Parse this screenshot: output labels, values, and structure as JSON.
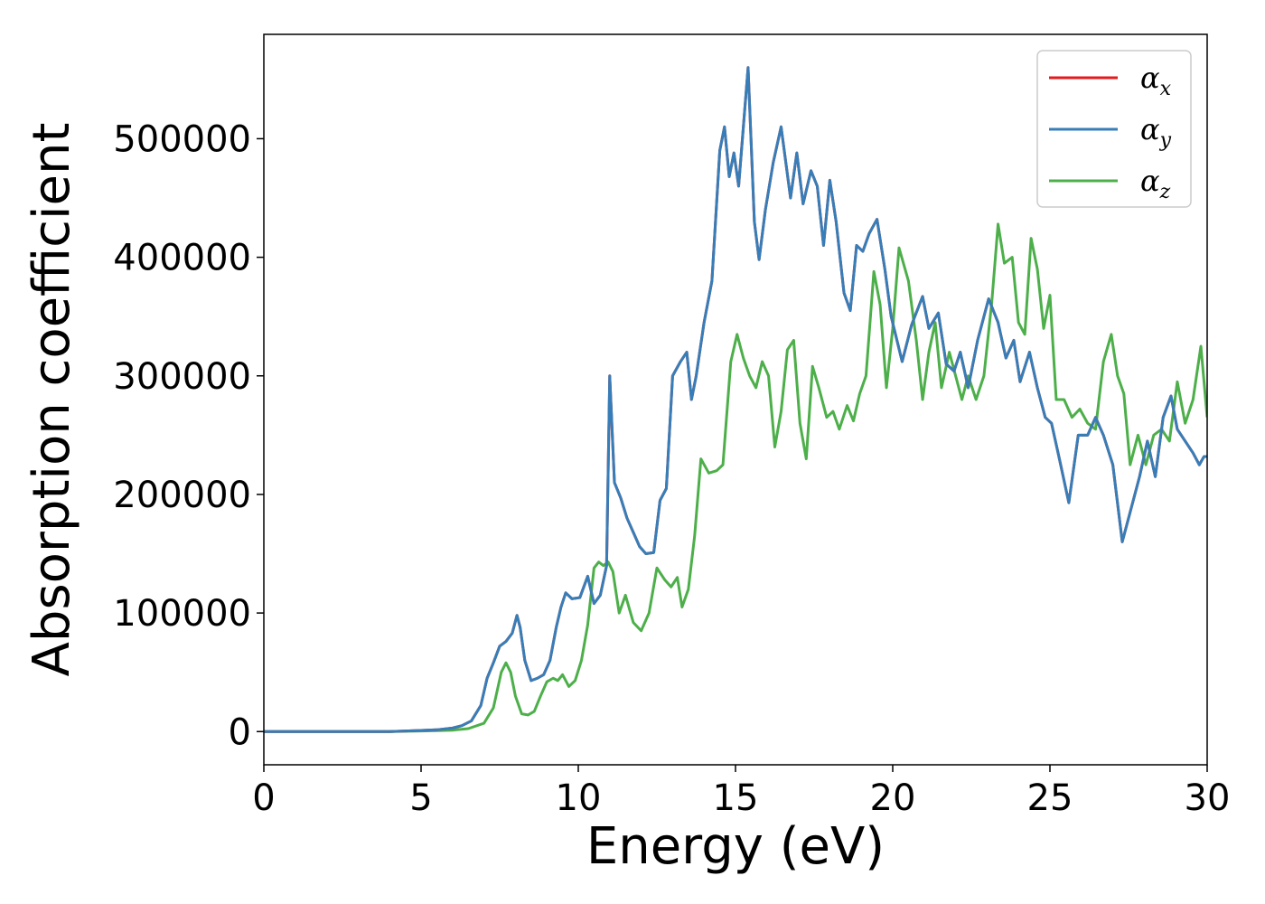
{
  "chart_data": {
    "type": "line",
    "xlabel": "Energy (eV)",
    "ylabel": "Absorption coefficient",
    "xlim": [
      0,
      30
    ],
    "ylim": [
      -28000,
      588000
    ],
    "xticks": [
      0,
      5,
      10,
      15,
      20,
      25,
      30
    ],
    "yticks": [
      0,
      100000,
      200000,
      300000,
      400000,
      500000
    ],
    "xtick_labels": [
      "0",
      "5",
      "10",
      "15",
      "20",
      "25",
      "30"
    ],
    "ytick_labels": [
      "0",
      "100000",
      "200000",
      "300000",
      "400000",
      "500000"
    ],
    "grid": false,
    "legend": "top-right",
    "legend_entries": [
      "α",
      "α",
      "α"
    ],
    "legend_subscripts": [
      "x",
      "y",
      "z"
    ],
    "series": [
      {
        "name": "αx",
        "color": "#e41a1c",
        "x": [
          0,
          1,
          2,
          3,
          4,
          5,
          5.5,
          6,
          6.3,
          6.6,
          6.9,
          7.1,
          7.3,
          7.5,
          7.7,
          7.9,
          8.05,
          8.15,
          8.3,
          8.5,
          8.7,
          8.9,
          9.1,
          9.3,
          9.45,
          9.6,
          9.8,
          10.05,
          10.3,
          10.5,
          10.7,
          10.9,
          11.0,
          11.15,
          11.35,
          11.55,
          11.75,
          11.95,
          12.15,
          12.4,
          12.6,
          12.8,
          13.0,
          13.25,
          13.45,
          13.6,
          13.75,
          14.0,
          14.25,
          14.5,
          14.65,
          14.8,
          14.95,
          15.1,
          15.4,
          15.6,
          15.75,
          15.95,
          16.2,
          16.45,
          16.6,
          16.75,
          16.95,
          17.15,
          17.4,
          17.6,
          17.8,
          18.0,
          18.2,
          18.45,
          18.65,
          18.85,
          19.05,
          19.25,
          19.5,
          19.75,
          19.95,
          20.3,
          20.6,
          20.95,
          21.15,
          21.45,
          21.7,
          21.95,
          22.15,
          22.4,
          22.7,
          23.05,
          23.35,
          23.6,
          23.85,
          24.05,
          24.35,
          24.6,
          24.85,
          25.05,
          25.3,
          25.6,
          25.9,
          26.2,
          26.45,
          26.7,
          27.0,
          27.3,
          27.55,
          27.85,
          28.1,
          28.35,
          28.6,
          28.85,
          29.05,
          29.3,
          29.55,
          29.75,
          29.9,
          30.0
        ],
        "values": [
          0,
          0,
          0,
          0,
          0,
          1000,
          1500,
          3000,
          5000,
          9000,
          22000,
          45000,
          58000,
          72000,
          76000,
          83000,
          98000,
          88000,
          60000,
          43000,
          45000,
          48000,
          60000,
          88000,
          105000,
          117000,
          112000,
          113000,
          131000,
          108000,
          115000,
          140000,
          300000,
          210000,
          197000,
          180000,
          168000,
          156000,
          150000,
          151000,
          195000,
          205000,
          300000,
          312000,
          320000,
          280000,
          300000,
          345000,
          380000,
          490000,
          510000,
          468000,
          488000,
          460000,
          560000,
          430000,
          398000,
          440000,
          480000,
          510000,
          480000,
          450000,
          488000,
          445000,
          473000,
          460000,
          410000,
          465000,
          430000,
          370000,
          355000,
          410000,
          405000,
          420000,
          432000,
          390000,
          350000,
          312000,
          343000,
          367000,
          340000,
          353000,
          310000,
          304000,
          320000,
          290000,
          330000,
          365000,
          345000,
          315000,
          330000,
          295000,
          320000,
          290000,
          265000,
          260000,
          230000,
          193000,
          250000,
          250000,
          265000,
          250000,
          225000,
          160000,
          185000,
          215000,
          245000,
          215000,
          265000,
          283000,
          255000,
          245000,
          235000,
          225000,
          232000,
          232000
        ]
      },
      {
        "name": "αy",
        "color": "#377eb8",
        "x": [
          0,
          1,
          2,
          3,
          4,
          5,
          5.5,
          6,
          6.3,
          6.6,
          6.9,
          7.1,
          7.3,
          7.5,
          7.7,
          7.9,
          8.05,
          8.15,
          8.3,
          8.5,
          8.7,
          8.9,
          9.1,
          9.3,
          9.45,
          9.6,
          9.8,
          10.05,
          10.3,
          10.5,
          10.7,
          10.9,
          11.0,
          11.15,
          11.35,
          11.55,
          11.75,
          11.95,
          12.15,
          12.4,
          12.6,
          12.8,
          13.0,
          13.25,
          13.45,
          13.6,
          13.75,
          14.0,
          14.25,
          14.5,
          14.65,
          14.8,
          14.95,
          15.1,
          15.4,
          15.6,
          15.75,
          15.95,
          16.2,
          16.45,
          16.6,
          16.75,
          16.95,
          17.15,
          17.4,
          17.6,
          17.8,
          18.0,
          18.2,
          18.45,
          18.65,
          18.85,
          19.05,
          19.25,
          19.5,
          19.75,
          19.95,
          20.3,
          20.6,
          20.95,
          21.15,
          21.45,
          21.7,
          21.95,
          22.15,
          22.4,
          22.7,
          23.05,
          23.35,
          23.6,
          23.85,
          24.05,
          24.35,
          24.6,
          24.85,
          25.05,
          25.3,
          25.6,
          25.9,
          26.2,
          26.45,
          26.7,
          27.0,
          27.3,
          27.55,
          27.85,
          28.1,
          28.35,
          28.6,
          28.85,
          29.05,
          29.3,
          29.55,
          29.75,
          29.9,
          30.0
        ],
        "values": [
          0,
          0,
          0,
          0,
          0,
          1000,
          1500,
          3000,
          5000,
          9000,
          22000,
          45000,
          58000,
          72000,
          76000,
          83000,
          98000,
          88000,
          60000,
          43000,
          45000,
          48000,
          60000,
          88000,
          105000,
          117000,
          112000,
          113000,
          131000,
          108000,
          115000,
          140000,
          300000,
          210000,
          197000,
          180000,
          168000,
          156000,
          150000,
          151000,
          195000,
          205000,
          300000,
          312000,
          320000,
          280000,
          300000,
          345000,
          380000,
          490000,
          510000,
          468000,
          488000,
          460000,
          560000,
          430000,
          398000,
          440000,
          480000,
          510000,
          480000,
          450000,
          488000,
          445000,
          473000,
          460000,
          410000,
          465000,
          430000,
          370000,
          355000,
          410000,
          405000,
          420000,
          432000,
          390000,
          350000,
          312000,
          343000,
          367000,
          340000,
          353000,
          310000,
          304000,
          320000,
          290000,
          330000,
          365000,
          345000,
          315000,
          330000,
          295000,
          320000,
          290000,
          265000,
          260000,
          230000,
          193000,
          250000,
          250000,
          265000,
          250000,
          225000,
          160000,
          185000,
          215000,
          245000,
          215000,
          265000,
          283000,
          255000,
          245000,
          235000,
          225000,
          232000,
          232000
        ]
      },
      {
        "name": "αz",
        "color": "#4daf4a",
        "x": [
          0,
          1,
          2,
          3,
          4,
          5,
          5.5,
          6,
          6.5,
          7.0,
          7.3,
          7.55,
          7.7,
          7.85,
          8.0,
          8.2,
          8.4,
          8.6,
          8.8,
          9.0,
          9.2,
          9.35,
          9.5,
          9.7,
          9.9,
          10.1,
          10.3,
          10.5,
          10.65,
          10.8,
          10.95,
          11.1,
          11.3,
          11.5,
          11.75,
          12.0,
          12.25,
          12.5,
          12.75,
          12.95,
          13.15,
          13.3,
          13.5,
          13.7,
          13.9,
          14.15,
          14.4,
          14.6,
          14.85,
          15.05,
          15.25,
          15.45,
          15.65,
          15.85,
          16.05,
          16.25,
          16.45,
          16.65,
          16.85,
          17.05,
          17.25,
          17.45,
          17.65,
          17.9,
          18.1,
          18.3,
          18.55,
          18.75,
          18.95,
          19.15,
          19.4,
          19.6,
          19.8,
          20.0,
          20.2,
          20.5,
          20.75,
          20.95,
          21.15,
          21.35,
          21.55,
          21.8,
          22.0,
          22.2,
          22.4,
          22.65,
          22.9,
          23.15,
          23.35,
          23.55,
          23.8,
          24.0,
          24.2,
          24.4,
          24.6,
          24.8,
          25.0,
          25.2,
          25.45,
          25.7,
          25.95,
          26.2,
          26.45,
          26.7,
          26.95,
          27.15,
          27.35,
          27.55,
          27.8,
          28.05,
          28.3,
          28.55,
          28.8,
          29.05,
          29.3,
          29.55,
          29.8,
          30.0
        ],
        "values": [
          0,
          0,
          0,
          0,
          0,
          500,
          800,
          1200,
          2500,
          7000,
          20000,
          50000,
          58000,
          50000,
          30000,
          15000,
          14000,
          17000,
          30000,
          42000,
          45000,
          43000,
          48000,
          38000,
          43000,
          60000,
          90000,
          138000,
          143000,
          140000,
          143000,
          135000,
          100000,
          115000,
          92000,
          85000,
          100000,
          138000,
          128000,
          122000,
          130000,
          105000,
          120000,
          165000,
          230000,
          218000,
          220000,
          225000,
          312000,
          335000,
          315000,
          300000,
          290000,
          312000,
          300000,
          240000,
          270000,
          322000,
          330000,
          260000,
          230000,
          308000,
          290000,
          265000,
          270000,
          255000,
          275000,
          262000,
          285000,
          300000,
          388000,
          360000,
          290000,
          340000,
          408000,
          380000,
          330000,
          280000,
          320000,
          345000,
          290000,
          320000,
          300000,
          280000,
          300000,
          280000,
          300000,
          362000,
          428000,
          395000,
          400000,
          345000,
          335000,
          416000,
          390000,
          340000,
          368000,
          280000,
          280000,
          265000,
          272000,
          260000,
          255000,
          312000,
          335000,
          300000,
          285000,
          225000,
          250000,
          225000,
          250000,
          255000,
          245000,
          295000,
          260000,
          280000,
          325000,
          265000
        ]
      }
    ]
  }
}
